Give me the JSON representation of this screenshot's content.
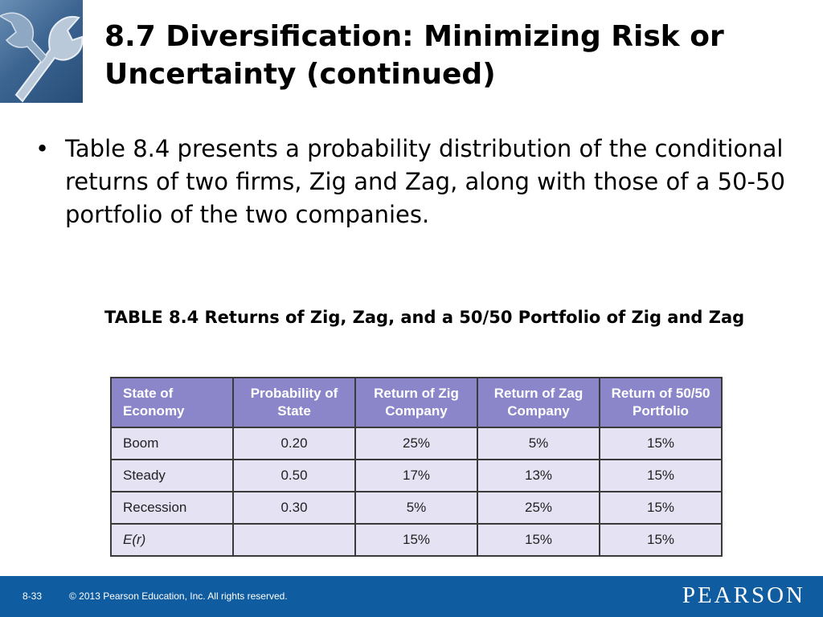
{
  "slide": {
    "title": "8.7  Diversification: Minimizing Risk or Uncertainty (continued)",
    "bullet": "Table 8.4 presents a probability distribution of the conditional returns of two firms, Zig and Zag, along with those of a 50-50 portfolio of the two companies.",
    "table_caption": "TABLE 8.4  Returns of Zig, Zag, and a 50/50 Portfolio of Zig and Zag"
  },
  "table": {
    "headers": [
      "State of Economy",
      "Probability of State",
      "Return of Zig Company",
      "Return of Zag Company",
      "Return of 50/50 Portfolio"
    ],
    "rows": [
      [
        "Boom",
        "0.20",
        "25%",
        "5%",
        "15%"
      ],
      [
        "Steady",
        "0.50",
        "17%",
        "13%",
        "15%"
      ],
      [
        "Recession",
        "0.30",
        "5%",
        "25%",
        "15%"
      ],
      [
        "E(r)",
        "",
        "15%",
        "15%",
        "15%"
      ]
    ]
  },
  "footer": {
    "page": "8-33",
    "copyright": "© 2013 Pearson Education, Inc. All rights reserved.",
    "brand": "PEARSON"
  },
  "colors": {
    "header_bg": "#8b86c9",
    "cell_bg": "#e4e2f3",
    "footer_bg": "#0f5ca0"
  },
  "icons": [
    "wrench-icon"
  ]
}
